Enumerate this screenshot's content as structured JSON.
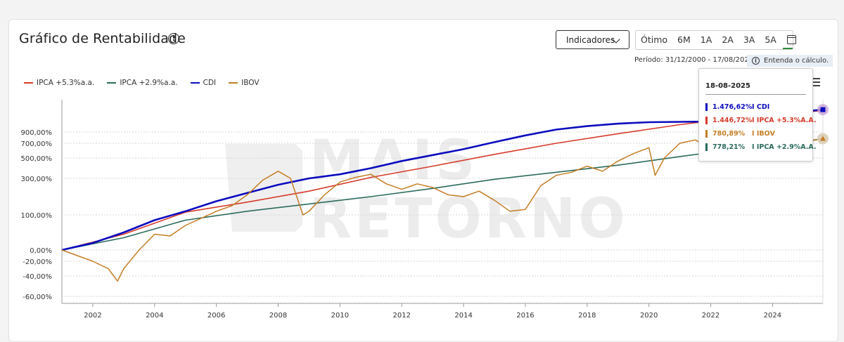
{
  "header": {
    "title": "Gráfico de Rentabilidade",
    "indicadores_label": "Indicadores",
    "periods": [
      "Ótimo",
      "6M",
      "1A",
      "2A",
      "3A",
      "5A"
    ],
    "periodo_text": "Período: 31/12/2000 - 17/08/2025",
    "entenda_label": "Entenda o cálculo."
  },
  "watermark": [
    "MAIS",
    "RETORNO"
  ],
  "colors": {
    "ipca53": "#d63b2b",
    "ipca29": "#2b6b5c",
    "cdi": "#0b0bbf",
    "ibov": "#c47d25"
  },
  "tooltip": {
    "date": "18-08-2025",
    "rows": [
      {
        "value": "1.476,62%",
        "label": "I CDI",
        "color": "#0b0bbf"
      },
      {
        "value": "1.446,72%",
        "label": "I IPCA +5.3%A.A.",
        "color": "#d63b2b"
      },
      {
        "value": "780,89%",
        "label": "I IBOV",
        "color": "#c47d25"
      },
      {
        "value": "778,21%",
        "label": "I IPCA +2.9%A.A.",
        "color": "#2b6b5c"
      }
    ]
  },
  "chart_data": {
    "type": "line",
    "title": "",
    "xlabel": "",
    "ylabel": "",
    "xlim": [
      2001.0,
      2025.63
    ],
    "y_ticks": [
      {
        "label": "900,00%",
        "value": 900
      },
      {
        "label": "700,00%",
        "value": 700
      },
      {
        "label": "500,00%",
        "value": 500
      },
      {
        "label": "300,00%",
        "value": 300
      },
      {
        "label": "100,00%",
        "value": 100
      },
      {
        "label": "0,00%",
        "value": 0
      },
      {
        "label": "-20,00%",
        "value": -20
      },
      {
        "label": "-40,00%",
        "value": -40
      },
      {
        "label": "-60,00%",
        "value": -60
      }
    ],
    "x_ticks": [
      "2002",
      "2004",
      "2006",
      "2008",
      "2010",
      "2012",
      "2014",
      "2016",
      "2018",
      "2020",
      "2022",
      "2024"
    ],
    "legend_position": "top-left",
    "series": [
      {
        "name": "IPCA +5.3%a.a.",
        "x": [
          2001,
          2003,
          2005,
          2007,
          2009,
          2011,
          2013,
          2015,
          2017,
          2019,
          2021,
          2023,
          2025.63
        ],
        "y": [
          0,
          45,
          115,
          170,
          230,
          310,
          420,
          550,
          700,
          870,
          1050,
          1250,
          1447
        ]
      },
      {
        "name": "IPCA +2.9%a.a.",
        "x": [
          2001,
          2003,
          2005,
          2007,
          2009,
          2011,
          2013,
          2015,
          2017,
          2019,
          2021,
          2023,
          2025.63
        ],
        "y": [
          0,
          35,
          85,
          120,
          160,
          200,
          245,
          295,
          360,
          430,
          520,
          630,
          778
        ]
      },
      {
        "name": "CDI",
        "x": [
          2001,
          2002,
          2003,
          2004,
          2005,
          2006,
          2007,
          2008,
          2009,
          2010,
          2011,
          2012,
          2013,
          2014,
          2015,
          2016,
          2017,
          2018,
          2019,
          2020,
          2021,
          2022,
          2023,
          2024,
          2025.63
        ],
        "y": [
          0,
          20,
          50,
          85,
          120,
          175,
          220,
          265,
          300,
          340,
          400,
          470,
          540,
          620,
          720,
          840,
          950,
          1020,
          1070,
          1100,
          1110,
          1120,
          1200,
          1330,
          1477
        ]
      },
      {
        "name": "IBOV",
        "x": [
          2001,
          2001.5,
          2002,
          2002.5,
          2002.8,
          2003,
          2003.5,
          2004,
          2004.5,
          2005,
          2005.5,
          2006,
          2006.5,
          2007,
          2007.5,
          2008,
          2008.4,
          2008.8,
          2009,
          2009.5,
          2010,
          2010.5,
          2011,
          2011.5,
          2012,
          2012.5,
          2013,
          2013.5,
          2014,
          2014.5,
          2015,
          2015.5,
          2016,
          2016.5,
          2017,
          2017.5,
          2018,
          2018.5,
          2019,
          2019.5,
          2020,
          2020.2,
          2020.5,
          2021,
          2021.5,
          2022,
          2022.5,
          2023,
          2023.5,
          2024,
          2024.5,
          2025,
          2025.63
        ],
        "y": [
          0,
          -10,
          -20,
          -30,
          -45,
          -30,
          0,
          45,
          40,
          70,
          90,
          120,
          150,
          210,
          290,
          370,
          300,
          100,
          120,
          210,
          280,
          310,
          340,
          270,
          240,
          270,
          250,
          210,
          200,
          230,
          180,
          120,
          130,
          260,
          330,
          360,
          420,
          370,
          470,
          560,
          640,
          330,
          500,
          700,
          760,
          620,
          600,
          640,
          700,
          760,
          650,
          720,
          781
        ]
      }
    ]
  }
}
